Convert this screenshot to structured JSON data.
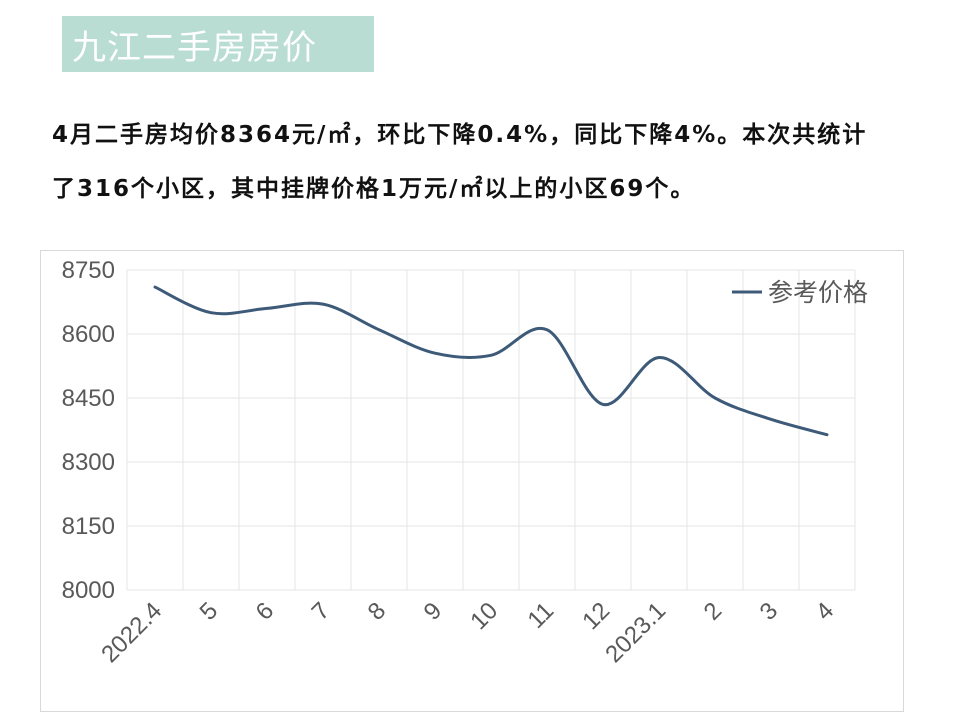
{
  "header": {
    "title": "九江二手房房价"
  },
  "summary": {
    "text": "4月二手房均价8364元/㎡，环比下降0.4%，同比下降4%。本次共统计了316个小区，其中挂牌价格1万元/㎡以上的小区69个。"
  },
  "colors": {
    "banner": "#b9ddd2",
    "line": "#3d5a78",
    "grid": "#e6e6e6"
  },
  "chart_data": {
    "type": "line",
    "categories": [
      "2022.4",
      "5",
      "6",
      "7",
      "8",
      "9",
      "10",
      "11",
      "12",
      "2023.1",
      "2",
      "3",
      "4"
    ],
    "series": [
      {
        "name": "参考价格",
        "values": [
          8710,
          8650,
          8660,
          8670,
          8610,
          8555,
          8550,
          8610,
          8435,
          8545,
          8450,
          8400,
          8364
        ]
      }
    ],
    "yticks": [
      8000,
      8150,
      8300,
      8450,
      8600,
      8750
    ],
    "ylim": [
      8000,
      8750
    ],
    "grid": true,
    "smooth": true,
    "legend_position": "top-right"
  }
}
